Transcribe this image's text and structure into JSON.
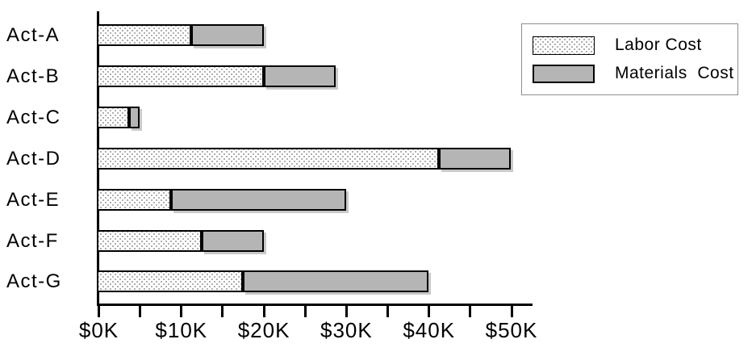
{
  "chart_data": {
    "type": "bar",
    "orientation": "horizontal",
    "stacked": true,
    "title": "",
    "categories": [
      "Act-A",
      "Act-B",
      "Act-C",
      "Act-D",
      "Act-E",
      "Act-F",
      "Act-G"
    ],
    "series": [
      {
        "name": "Labor Cost",
        "style": "dotted-white",
        "values": [
          11.25,
          20,
          3.75,
          41.25,
          8.75,
          12.5,
          17.5
        ]
      },
      {
        "name": "Materials Cost",
        "style": "solid-gray",
        "values": [
          8.75,
          8.75,
          1.25,
          8.75,
          21.25,
          7.5,
          22.5
        ]
      }
    ],
    "value_unit": "USD thousands",
    "xlim": [
      0,
      52.5
    ],
    "x_minor_tick_step": 5,
    "x_major_tick_step": 10,
    "x_tick_labels": [
      "$0K",
      "$10K",
      "$20K",
      "$30K",
      "$40K",
      "$50K"
    ],
    "grid": false,
    "legend_position": "top-right"
  },
  "legend": {
    "items": [
      {
        "label": "Labor Cost",
        "swatch": "dotted"
      },
      {
        "label": "Materials  Cost",
        "swatch": "solid-gray"
      }
    ]
  },
  "colors": {
    "materials_fill": "#b5b5b5",
    "labor_dot": "#999999",
    "labor_background": "#ffffff",
    "axis": "#000000",
    "text": "#000000",
    "legend_border": "#8e8e8e",
    "bar_shadow": "#c9c9c9",
    "background": "#ffffff"
  }
}
